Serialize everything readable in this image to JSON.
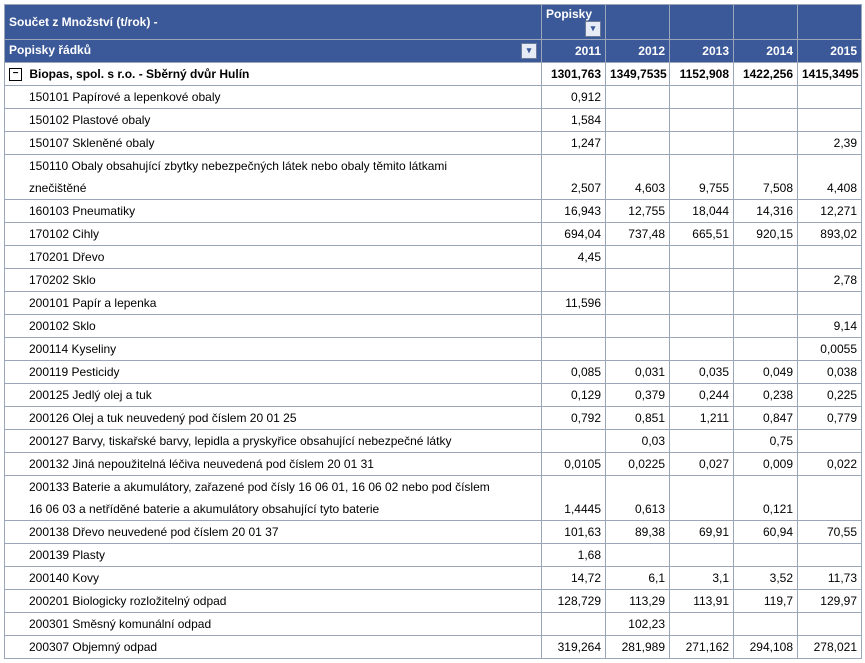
{
  "title": "Součet z Množství (t/rok) -",
  "popisky_col_header": "Popisky",
  "row_labels_header": "Popisky řádků",
  "years": [
    "2011",
    "2012",
    "2013",
    "2014",
    "2015"
  ],
  "group": {
    "label": "Biopas, spol. s r.o. - Sběrný dvůr Hulín",
    "totals": [
      "1301,763",
      "1349,7535",
      "1152,908",
      "1422,256",
      "1415,3495"
    ]
  },
  "rows": [
    {
      "label": "150101 Papírové a lepenkové obaly",
      "v": [
        "0,912",
        "",
        "",
        "",
        ""
      ]
    },
    {
      "label": "150102 Plastové obaly",
      "v": [
        "1,584",
        "",
        "",
        "",
        ""
      ]
    },
    {
      "label": "150107 Skleněné obaly",
      "v": [
        "1,247",
        "",
        "",
        "",
        "2,39"
      ]
    },
    {
      "label": "150110 Obaly obsahující zbytky nebezpečných látek nebo obaly těmito látkami",
      "v": null
    },
    {
      "label": "znečištěné",
      "v": [
        "2,507",
        "4,603",
        "9,755",
        "7,508",
        "4,408"
      ],
      "cont": true
    },
    {
      "label": "160103 Pneumatiky",
      "v": [
        "16,943",
        "12,755",
        "18,044",
        "14,316",
        "12,271"
      ]
    },
    {
      "label": "170102 Cihly",
      "v": [
        "694,04",
        "737,48",
        "665,51",
        "920,15",
        "893,02"
      ]
    },
    {
      "label": "170201 Dřevo",
      "v": [
        "4,45",
        "",
        "",
        "",
        ""
      ]
    },
    {
      "label": "170202 Sklo",
      "v": [
        "",
        "",
        "",
        "",
        "2,78"
      ]
    },
    {
      "label": "200101 Papír a lepenka",
      "v": [
        "11,596",
        "",
        "",
        "",
        ""
      ]
    },
    {
      "label": "200102 Sklo",
      "v": [
        "",
        "",
        "",
        "",
        "9,14"
      ]
    },
    {
      "label": "200114 Kyseliny",
      "v": [
        "",
        "",
        "",
        "",
        "0,0055"
      ]
    },
    {
      "label": "200119 Pesticidy",
      "v": [
        "0,085",
        "0,031",
        "0,035",
        "0,049",
        "0,038"
      ]
    },
    {
      "label": "200125 Jedlý olej a tuk",
      "v": [
        "0,129",
        "0,379",
        "0,244",
        "0,238",
        "0,225"
      ]
    },
    {
      "label": "200126 Olej a tuk neuvedený pod číslem 20 01 25",
      "v": [
        "0,792",
        "0,851",
        "1,211",
        "0,847",
        "0,779"
      ]
    },
    {
      "label": "200127 Barvy, tiskařské barvy, lepidla a pryskyřice obsahující nebezpečné látky",
      "v": [
        "",
        "0,03",
        "",
        "0,75",
        ""
      ]
    },
    {
      "label": "200132 Jiná nepoužitelná léčiva neuvedená pod číslem 20 01 31",
      "v": [
        "0,0105",
        "0,0225",
        "0,027",
        "0,009",
        "0,022"
      ]
    },
    {
      "label": "200133 Baterie a akumulátory, zařazené pod čísly 16 06 01, 16 06 02 nebo pod číslem",
      "v": null
    },
    {
      "label": "16 06 03 a netříděné baterie a akumulátory obsahující tyto baterie",
      "v": [
        "1,4445",
        "0,613",
        "",
        "0,121",
        ""
      ],
      "cont": true
    },
    {
      "label": "200138 Dřevo neuvedené pod číslem 20 01 37",
      "v": [
        "101,63",
        "89,38",
        "69,91",
        "60,94",
        "70,55"
      ]
    },
    {
      "label": "200139 Plasty",
      "v": [
        "1,68",
        "",
        "",
        "",
        ""
      ]
    },
    {
      "label": "200140 Kovy",
      "v": [
        "14,72",
        "6,1",
        "3,1",
        "3,52",
        "11,73"
      ]
    },
    {
      "label": "200201 Biologicky rozložitelný odpad",
      "v": [
        "128,729",
        "113,29",
        "113,91",
        "119,7",
        "129,97"
      ]
    },
    {
      "label": "200301 Směsný komunální odpad",
      "v": [
        "",
        "102,23",
        "",
        "",
        ""
      ]
    },
    {
      "label": "200307 Objemný odpad",
      "v": [
        "319,264",
        "281,989",
        "271,162",
        "294,108",
        "278,021"
      ]
    }
  ]
}
